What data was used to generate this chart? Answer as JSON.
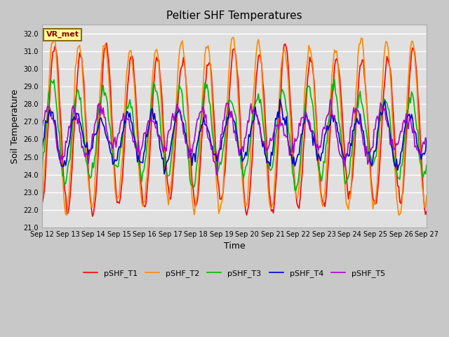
{
  "title": "Peltier SHF Temperatures",
  "xlabel": "Time",
  "ylabel": "Soil Temperature",
  "ylim": [
    21.0,
    32.5
  ],
  "yticks": [
    21.0,
    22.0,
    23.0,
    24.0,
    25.0,
    26.0,
    27.0,
    28.0,
    29.0,
    30.0,
    31.0,
    32.0
  ],
  "annotation_text": "VR_met",
  "annotation_color": "#8B0000",
  "annotation_bg": "#ffff99",
  "annotation_border": "#8B6914",
  "series_colors": {
    "pSHF_T1": "#ff0000",
    "pSHF_T2": "#ff8800",
    "pSHF_T3": "#00bb00",
    "pSHF_T4": "#0000cc",
    "pSHF_T5": "#aa00cc"
  },
  "x_tick_labels": [
    "Sep 12",
    "Sep 13",
    "Sep 14",
    "Sep 15",
    "Sep 16",
    "Sep 17",
    "Sep 18",
    "Sep 19",
    "Sep 20",
    "Sep 21",
    "Sep 22",
    "Sep 23",
    "Sep 24",
    "Sep 25",
    "Sep 26",
    "Sep 27"
  ],
  "line_width": 1.2,
  "grid_color": "#ffffff",
  "title_fontsize": 11,
  "tick_fontsize": 7,
  "axis_label_fontsize": 9,
  "legend_fontsize": 8,
  "fig_bg": "#c8c8c8",
  "axes_bg": "#e0e0e0"
}
